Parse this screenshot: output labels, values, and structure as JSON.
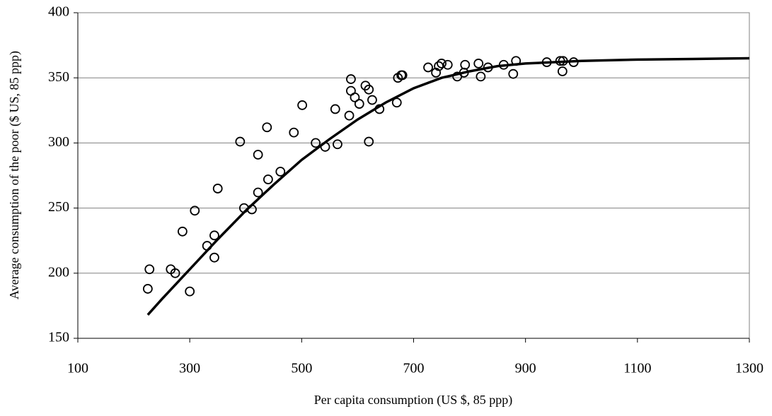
{
  "chart_data": {
    "type": "scatter",
    "x_label": "Per capita consumption (US $, 85 ppp)",
    "y_label": "Average consumption of the poor ($ US, 85 ppp)",
    "xlim": [
      100,
      1300
    ],
    "xticks": [
      100,
      300,
      500,
      700,
      900,
      1100,
      1300
    ],
    "ylim": [
      150,
      400
    ],
    "yticks": [
      150,
      200,
      250,
      300,
      350,
      400
    ],
    "grid": true,
    "series": [
      {
        "color": "#000000",
        "x": [
          225,
          228,
          266,
          274,
          287,
          300,
          309,
          331,
          344,
          344,
          350,
          390,
          397,
          411,
          422,
          422,
          438,
          440,
          462,
          486,
          501,
          525,
          542,
          560,
          564,
          585,
          588,
          588,
          595,
          603,
          614,
          620,
          620,
          626,
          639,
          670,
          672,
          678,
          680,
          726,
          740,
          745,
          750,
          761,
          778,
          790,
          792,
          816,
          820,
          833,
          861,
          878,
          883,
          938,
          962,
          967,
          966,
          986
        ],
        "values": [
          188,
          203,
          203,
          200,
          232,
          186,
          248,
          221,
          229,
          212,
          265,
          301,
          250,
          249,
          262,
          291,
          312,
          272,
          278,
          308,
          329,
          300,
          297,
          326,
          299,
          321,
          349,
          340,
          335,
          330,
          344,
          341,
          301,
          333,
          326,
          331,
          350,
          352,
          352,
          358,
          354,
          359,
          361,
          360,
          351,
          354,
          360,
          361,
          351,
          358,
          360,
          353,
          363,
          362,
          363,
          363,
          355,
          362
        ]
      }
    ],
    "curve": {
      "color": "#000000",
      "x": [
        225,
        250,
        300,
        350,
        400,
        450,
        500,
        550,
        600,
        650,
        700,
        750,
        800,
        850,
        900,
        1000,
        1100,
        1200,
        1300
      ],
      "values": [
        168,
        180,
        203,
        226,
        248,
        268,
        287,
        303,
        318,
        331,
        342,
        350,
        355,
        359,
        361,
        363,
        364,
        364.5,
        365
      ]
    }
  }
}
